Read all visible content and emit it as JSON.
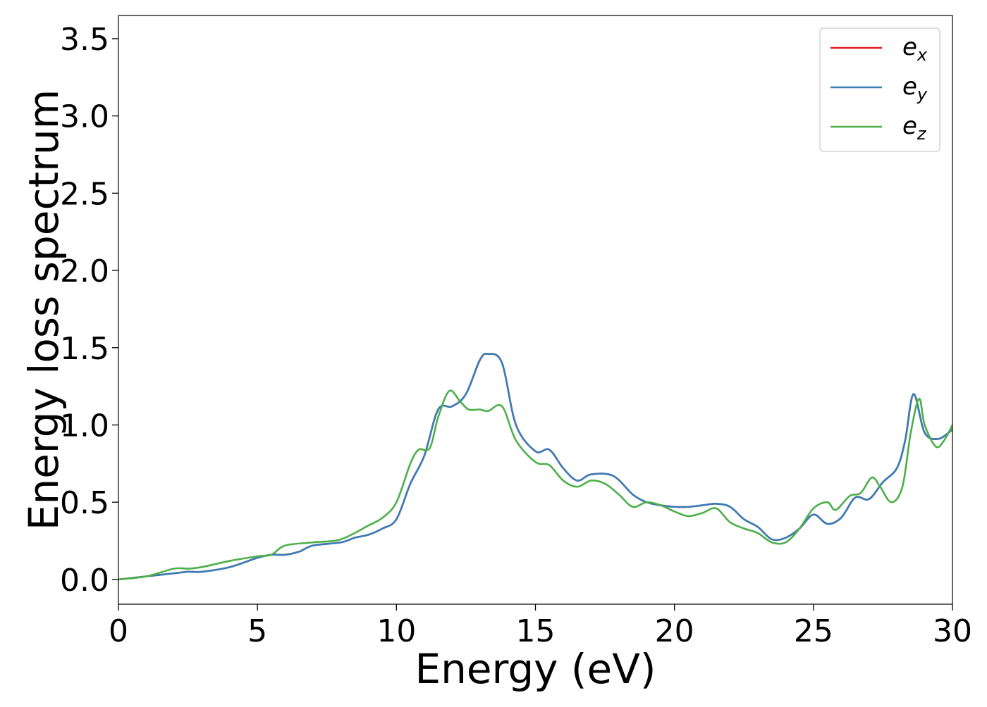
{
  "chart_data": {
    "type": "line",
    "title": "",
    "xlabel": "Energy (eV)",
    "ylabel": "Energy loss spectrum",
    "xlim": [
      0,
      30
    ],
    "ylim": [
      -0.16,
      3.65
    ],
    "xticks": [
      0,
      5,
      10,
      15,
      20,
      25,
      30
    ],
    "xtick_labels": [
      "0",
      "5",
      "10",
      "15",
      "20",
      "25",
      "30"
    ],
    "yticks": [
      0.0,
      0.5,
      1.0,
      1.5,
      2.0,
      2.5,
      3.0,
      3.5
    ],
    "ytick_labels": [
      "0.0",
      "0.5",
      "1.0",
      "1.5",
      "2.0",
      "2.5",
      "3.0",
      "3.5"
    ],
    "grid": false,
    "legend": {
      "placement": "top-right",
      "entries": [
        {
          "base": "e",
          "sub": "x",
          "color": "#e41a1c"
        },
        {
          "base": "e",
          "sub": "y",
          "color": "#377eb8"
        },
        {
          "base": "e",
          "sub": "z",
          "color": "#4daf4a"
        }
      ]
    },
    "series": [
      {
        "key": "ex",
        "color": "#e41a1c",
        "points": [
          [
            0,
            0.0
          ],
          [
            1,
            0.02
          ],
          [
            2,
            0.04
          ],
          [
            2.5,
            0.05
          ],
          [
            3,
            0.05
          ],
          [
            4,
            0.08
          ],
          [
            5,
            0.14
          ],
          [
            5.5,
            0.16
          ],
          [
            6,
            0.16
          ],
          [
            6.5,
            0.18
          ],
          [
            7,
            0.22
          ],
          [
            8,
            0.24
          ],
          [
            8.5,
            0.27
          ],
          [
            9,
            0.29
          ],
          [
            9.5,
            0.33
          ],
          [
            10,
            0.39
          ],
          [
            10.5,
            0.62
          ],
          [
            11,
            0.8
          ],
          [
            11.5,
            1.1
          ],
          [
            12,
            1.12
          ],
          [
            12.5,
            1.2
          ],
          [
            13,
            1.42
          ],
          [
            13.3,
            1.46
          ],
          [
            13.8,
            1.4
          ],
          [
            14.3,
            1.0
          ],
          [
            15,
            0.83
          ],
          [
            15.5,
            0.84
          ],
          [
            16,
            0.72
          ],
          [
            16.5,
            0.64
          ],
          [
            17,
            0.68
          ],
          [
            17.8,
            0.67
          ],
          [
            18.5,
            0.55
          ],
          [
            19,
            0.5
          ],
          [
            19.5,
            0.48
          ],
          [
            20,
            0.47
          ],
          [
            20.5,
            0.47
          ],
          [
            21,
            0.48
          ],
          [
            21.5,
            0.49
          ],
          [
            22,
            0.47
          ],
          [
            22.5,
            0.39
          ],
          [
            23,
            0.34
          ],
          [
            23.5,
            0.26
          ],
          [
            24,
            0.27
          ],
          [
            24.5,
            0.33
          ],
          [
            25,
            0.42
          ],
          [
            25.5,
            0.36
          ],
          [
            26,
            0.4
          ],
          [
            26.5,
            0.53
          ],
          [
            27,
            0.52
          ],
          [
            27.5,
            0.63
          ],
          [
            28,
            0.72
          ],
          [
            28.3,
            0.9
          ],
          [
            28.6,
            1.2
          ],
          [
            29,
            0.95
          ],
          [
            29.5,
            0.91
          ],
          [
            30,
            0.97
          ]
        ]
      },
      {
        "key": "ey",
        "color": "#377eb8",
        "points": [
          [
            0,
            0.0
          ],
          [
            1,
            0.02
          ],
          [
            2,
            0.04
          ],
          [
            2.5,
            0.05
          ],
          [
            3,
            0.05
          ],
          [
            4,
            0.08
          ],
          [
            5,
            0.14
          ],
          [
            5.5,
            0.16
          ],
          [
            6,
            0.16
          ],
          [
            6.5,
            0.18
          ],
          [
            7,
            0.22
          ],
          [
            8,
            0.24
          ],
          [
            8.5,
            0.27
          ],
          [
            9,
            0.29
          ],
          [
            9.5,
            0.33
          ],
          [
            10,
            0.39
          ],
          [
            10.5,
            0.62
          ],
          [
            11,
            0.8
          ],
          [
            11.5,
            1.1
          ],
          [
            12,
            1.12
          ],
          [
            12.5,
            1.2
          ],
          [
            13,
            1.42
          ],
          [
            13.3,
            1.46
          ],
          [
            13.8,
            1.4
          ],
          [
            14.3,
            1.0
          ],
          [
            15,
            0.83
          ],
          [
            15.5,
            0.84
          ],
          [
            16,
            0.72
          ],
          [
            16.5,
            0.64
          ],
          [
            17,
            0.68
          ],
          [
            17.8,
            0.67
          ],
          [
            18.5,
            0.55
          ],
          [
            19,
            0.5
          ],
          [
            19.5,
            0.48
          ],
          [
            20,
            0.47
          ],
          [
            20.5,
            0.47
          ],
          [
            21,
            0.48
          ],
          [
            21.5,
            0.49
          ],
          [
            22,
            0.47
          ],
          [
            22.5,
            0.39
          ],
          [
            23,
            0.34
          ],
          [
            23.5,
            0.26
          ],
          [
            24,
            0.27
          ],
          [
            24.5,
            0.33
          ],
          [
            25,
            0.42
          ],
          [
            25.5,
            0.36
          ],
          [
            26,
            0.4
          ],
          [
            26.5,
            0.53
          ],
          [
            27,
            0.52
          ],
          [
            27.5,
            0.63
          ],
          [
            28,
            0.72
          ],
          [
            28.3,
            0.9
          ],
          [
            28.6,
            1.2
          ],
          [
            29,
            0.95
          ],
          [
            29.5,
            0.91
          ],
          [
            30,
            0.97
          ]
        ]
      },
      {
        "key": "ez",
        "color": "#4daf4a",
        "points": [
          [
            0,
            0.0
          ],
          [
            1,
            0.02
          ],
          [
            2,
            0.07
          ],
          [
            2.5,
            0.07
          ],
          [
            3,
            0.08
          ],
          [
            4,
            0.12
          ],
          [
            5,
            0.15
          ],
          [
            5.5,
            0.16
          ],
          [
            6,
            0.22
          ],
          [
            7,
            0.24
          ],
          [
            8,
            0.26
          ],
          [
            9,
            0.35
          ],
          [
            9.5,
            0.4
          ],
          [
            10,
            0.5
          ],
          [
            10.5,
            0.75
          ],
          [
            10.8,
            0.84
          ],
          [
            11.2,
            0.85
          ],
          [
            11.5,
            1.05
          ],
          [
            11.9,
            1.22
          ],
          [
            12.3,
            1.15
          ],
          [
            12.6,
            1.1
          ],
          [
            13,
            1.1
          ],
          [
            13.3,
            1.09
          ],
          [
            13.8,
            1.12
          ],
          [
            14.3,
            0.9
          ],
          [
            15,
            0.76
          ],
          [
            15.5,
            0.74
          ],
          [
            16,
            0.64
          ],
          [
            16.5,
            0.6
          ],
          [
            17,
            0.64
          ],
          [
            17.5,
            0.62
          ],
          [
            18,
            0.55
          ],
          [
            18.5,
            0.47
          ],
          [
            19,
            0.5
          ],
          [
            19.5,
            0.48
          ],
          [
            20,
            0.44
          ],
          [
            20.5,
            0.41
          ],
          [
            21,
            0.43
          ],
          [
            21.5,
            0.46
          ],
          [
            22,
            0.37
          ],
          [
            22.5,
            0.33
          ],
          [
            23,
            0.3
          ],
          [
            23.5,
            0.24
          ],
          [
            24,
            0.24
          ],
          [
            24.5,
            0.33
          ],
          [
            25,
            0.46
          ],
          [
            25.5,
            0.5
          ],
          [
            25.8,
            0.45
          ],
          [
            26.3,
            0.54
          ],
          [
            26.7,
            0.56
          ],
          [
            27.1,
            0.66
          ],
          [
            27.4,
            0.6
          ],
          [
            27.8,
            0.5
          ],
          [
            28.2,
            0.6
          ],
          [
            28.5,
            0.95
          ],
          [
            28.8,
            1.17
          ],
          [
            29,
            1.0
          ],
          [
            29.4,
            0.86
          ],
          [
            29.7,
            0.9
          ],
          [
            30,
            1.0
          ]
        ]
      }
    ]
  }
}
